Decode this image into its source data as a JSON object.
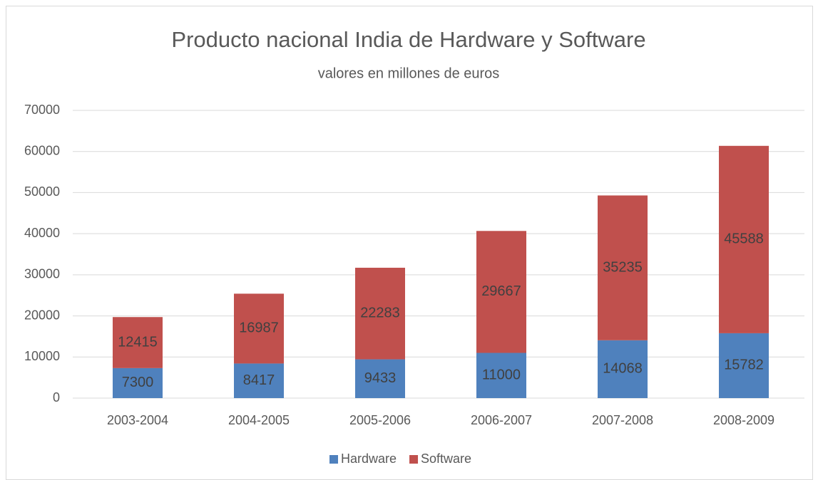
{
  "chart_data": {
    "type": "bar",
    "stacked": true,
    "title": "Producto nacional India de Hardware y Software",
    "subtitle": "valores en millones de euros",
    "categories": [
      "2003-2004",
      "2004-2005",
      "2005-2006",
      "2006-2007",
      "2007-2008",
      "2008-2009"
    ],
    "series": [
      {
        "name": "Hardware",
        "color": "#4f81bd",
        "values": [
          7300,
          8417,
          9433,
          11000,
          14068,
          15782
        ]
      },
      {
        "name": "Software",
        "color": "#c0504d",
        "values": [
          12415,
          16987,
          22283,
          29667,
          35235,
          45588
        ]
      }
    ],
    "ylim": [
      0,
      70000
    ],
    "yticks": [
      0,
      10000,
      20000,
      30000,
      40000,
      50000,
      60000,
      70000
    ],
    "grid": true,
    "legend": "bottom"
  }
}
